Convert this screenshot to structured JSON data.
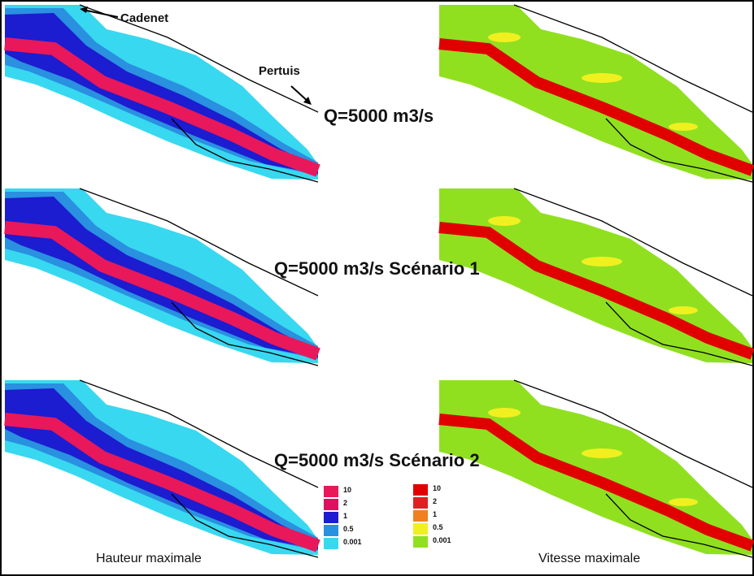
{
  "annotations": {
    "cadenet": "Cadenet",
    "pertuis": "Pertuis"
  },
  "scenarios": [
    "Q=5000 m3/s",
    "Q=5000 m3/s Scénario 1",
    "Q=5000 m3/s Scénario 2"
  ],
  "captions": {
    "height": "Hauteur maximale",
    "velocity": "Vitesse maximale"
  },
  "legends": {
    "height": [
      "10",
      "2",
      "1",
      "0.5",
      "0.001"
    ],
    "velocity": [
      "10",
      "2",
      "1",
      "0.5",
      "0.001"
    ]
  }
}
